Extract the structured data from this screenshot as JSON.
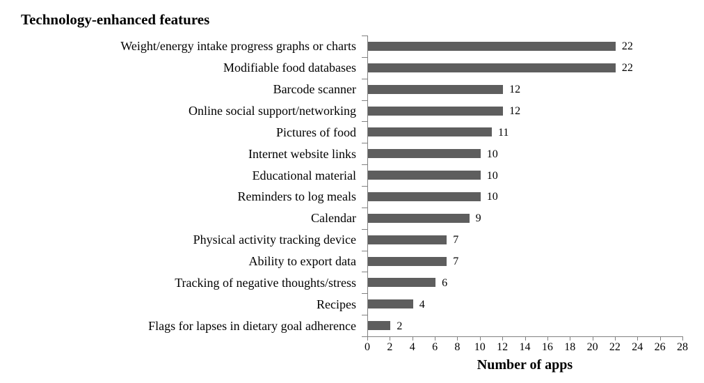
{
  "title": "Technology-enhanced features",
  "chart_data": {
    "type": "bar",
    "orientation": "horizontal",
    "title": "Technology-enhanced features",
    "xlabel": "Number of apps",
    "ylabel": "",
    "categories": [
      "Weight/energy intake progress graphs or charts",
      "Modifiable food databases",
      "Barcode scanner",
      "Online social support/networking",
      "Pictures of food",
      "Internet website links",
      "Educational material",
      "Reminders to log meals",
      "Calendar",
      "Physical activity tracking device",
      "Ability to export data",
      "Tracking of negative thoughts/stress",
      "Recipes",
      "Flags for lapses in dietary goal adherence"
    ],
    "values": [
      22,
      22,
      12,
      12,
      11,
      10,
      10,
      10,
      9,
      7,
      7,
      6,
      4,
      2
    ],
    "xlim": [
      0,
      28
    ],
    "xticks": [
      0,
      2,
      4,
      6,
      8,
      10,
      12,
      14,
      16,
      18,
      20,
      22,
      24,
      26,
      28
    ],
    "grid": false,
    "legend": "none",
    "value_labels": true,
    "bar_color": "#5e5e5e",
    "axis_color": "#808080",
    "text_color": "#000000",
    "background_color": "#ffffff"
  }
}
